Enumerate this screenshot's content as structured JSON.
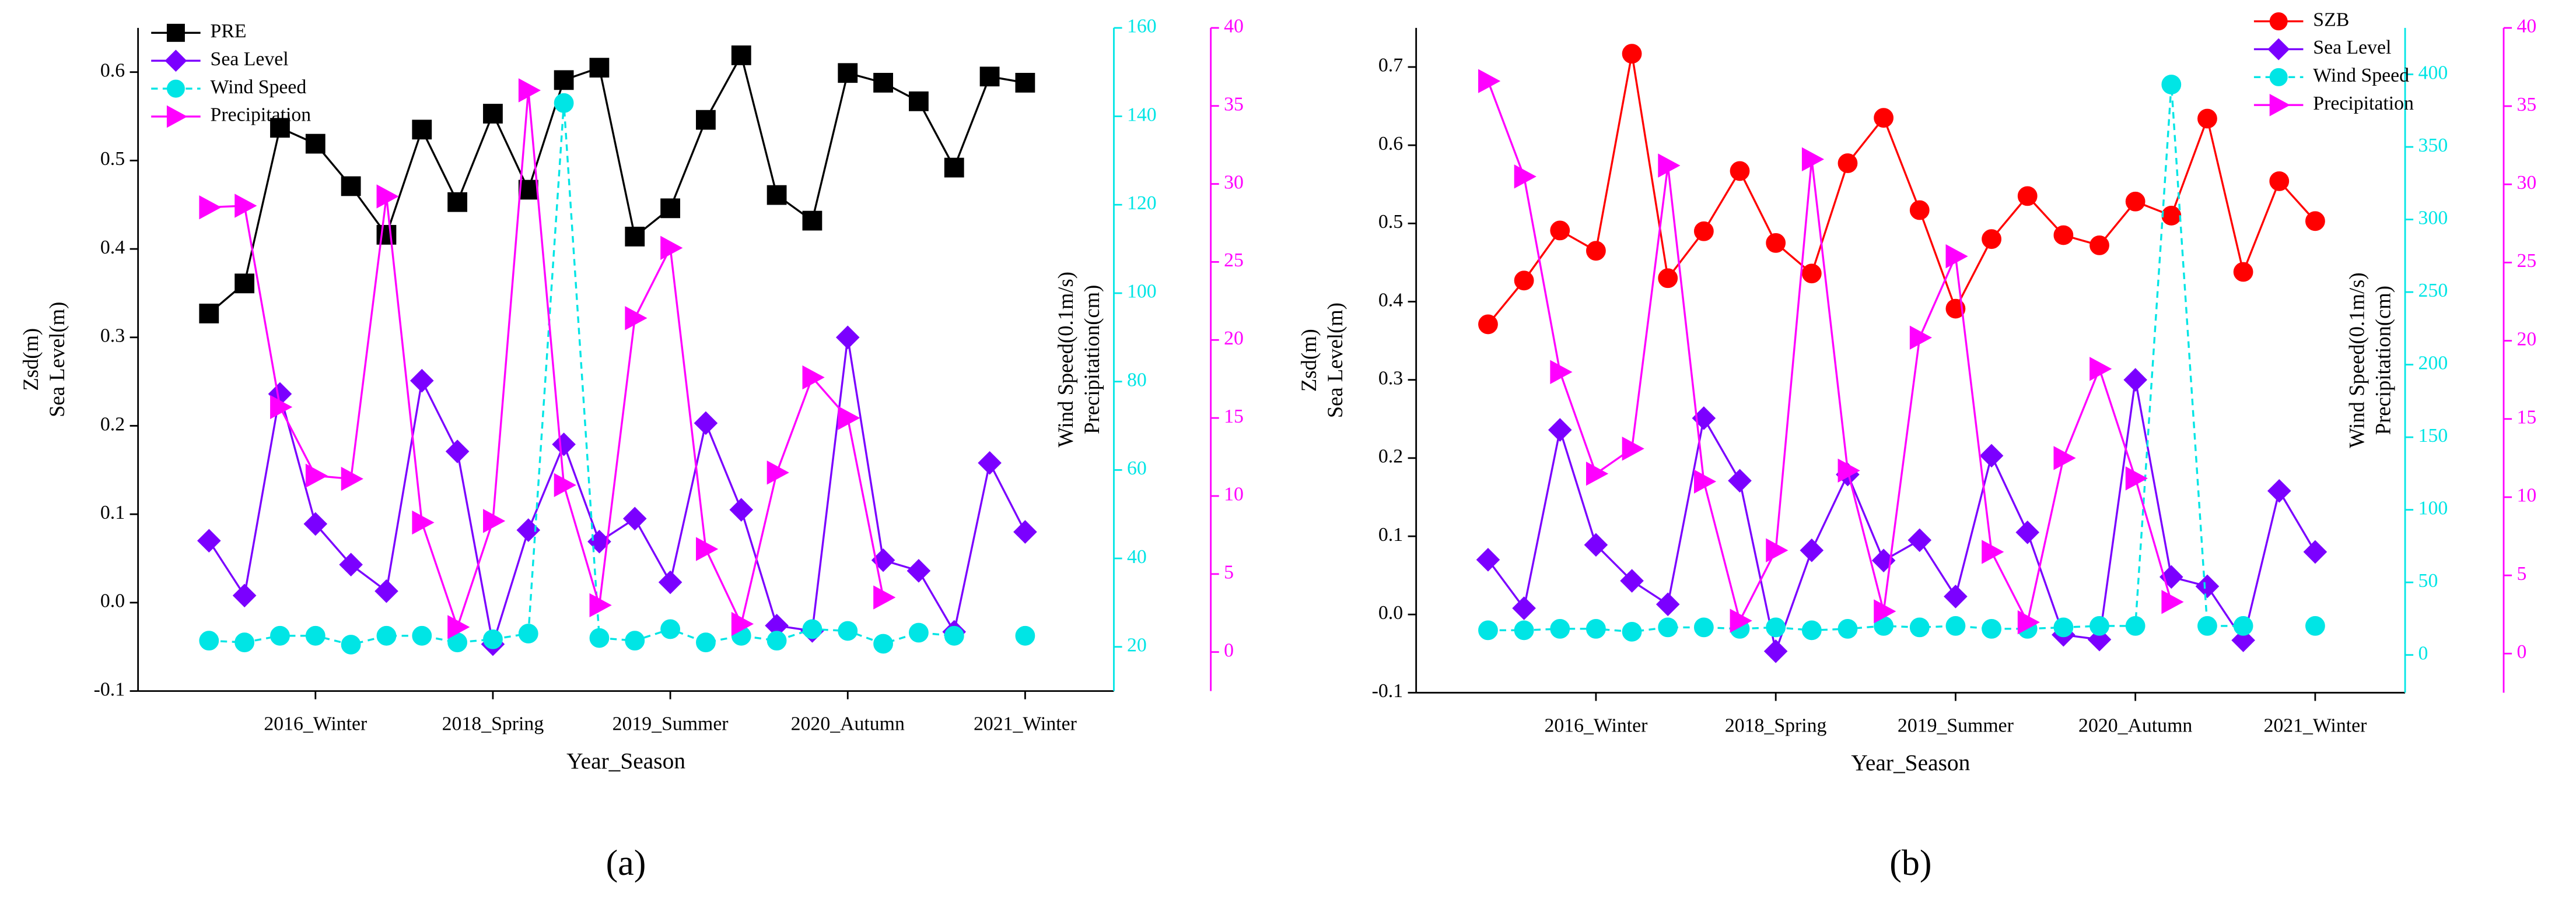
{
  "chart_data": [
    {
      "type": "line",
      "panel_label": "(a)",
      "xlabel": "Year_Season",
      "ylabel": [
        "Zsd(m)",
        "Sea Level(m)"
      ],
      "y2label": "Wind Speed(0.1m/s)",
      "y3label": "Precipitation(cm)",
      "legend": "upper left",
      "categories": [
        null,
        null,
        null,
        "2016_Winter",
        null,
        null,
        null,
        null,
        "2018_Spring",
        null,
        null,
        null,
        null,
        "2019_Summer",
        null,
        null,
        null,
        null,
        "2020_Autumn",
        null,
        null,
        null,
        null,
        "2021_Winter"
      ],
      "ylim": [
        -0.1,
        0.65
      ],
      "yticks": [
        -0.1,
        {
          "value": 0,
          "label": "0.0"
        },
        0.1,
        0.2,
        0.3,
        0.4,
        0.5,
        0.6
      ],
      "y2lim": [
        10,
        160
      ],
      "y2ticks": [
        20,
        40,
        60,
        80,
        100,
        120,
        140,
        160
      ],
      "y3lim": [
        -2.5,
        40
      ],
      "y3ticks": [
        0,
        5,
        10,
        15,
        20,
        25,
        30,
        35,
        40
      ],
      "series": [
        {
          "name": "PRE",
          "color": "#000000",
          "marker": "square",
          "axis": "y",
          "values": [
            0.327,
            0.361,
            0.537,
            0.519,
            0.471,
            0.416,
            0.535,
            0.453,
            0.553,
            0.467,
            0.591,
            0.605,
            0.414,
            0.446,
            0.546,
            0.619,
            0.461,
            0.432,
            0.599,
            0.588,
            0.567,
            0.492,
            0.595,
            0.588
          ]
        },
        {
          "name": "Sea Level",
          "color": "#7b00ff",
          "marker": "diamond",
          "axis": "y",
          "values": [
            0.07,
            0.008,
            0.236,
            0.089,
            0.043,
            0.013,
            0.251,
            0.171,
            -0.047,
            0.082,
            0.179,
            0.069,
            0.095,
            0.023,
            0.203,
            0.105,
            -0.026,
            -0.032,
            0.3,
            0.048,
            0.036,
            -0.033,
            0.158,
            0.08
          ]
        },
        {
          "name": "Wind Speed",
          "color": "#00e5e5",
          "marker": "circle",
          "axis": "y2",
          "dashed": true,
          "values": [
            21.4,
            21,
            22.5,
            22.5,
            20.5,
            22.5,
            22.5,
            21,
            21.7,
            23,
            143,
            22,
            21.4,
            24,
            21,
            22.5,
            21.4,
            24,
            23.6,
            20.7,
            23.2,
            22.5,
            null,
            22.5
          ]
        },
        {
          "name": "Precipitation",
          "color": "#ff00ff",
          "marker": "triangle",
          "axis": "y3",
          "values": [
            28.5,
            28.6,
            15.7,
            11.3,
            11.1,
            29.2,
            8.3,
            1.6,
            8.4,
            36,
            10.7,
            3,
            21.4,
            25.9,
            6.6,
            1.8,
            11.5,
            17.6,
            15,
            3.5,
            null,
            null,
            null,
            null
          ]
        }
      ]
    },
    {
      "type": "line",
      "panel_label": "(b)",
      "xlabel": "Year_Season",
      "ylabel": [
        "Zsd(m)",
        "Sea Level(m)"
      ],
      "y2label": "Wind Speed(0.1m/s)",
      "y3label": "Precipitation(cm)",
      "legend": "upper right",
      "categories": [
        null,
        null,
        null,
        "2016_Winter",
        null,
        null,
        null,
        null,
        "2018_Spring",
        null,
        null,
        null,
        null,
        "2019_Summer",
        null,
        null,
        null,
        null,
        "2020_Autumn",
        null,
        null,
        null,
        null,
        "2021_Winter"
      ],
      "ylim": [
        -0.1,
        0.75
      ],
      "yticks": [
        -0.1,
        {
          "value": 0,
          "label": "0.0"
        },
        0.1,
        0.2,
        0.3,
        0.4,
        0.5,
        0.6,
        0.7
      ],
      "y2lim": [
        -26,
        432
      ],
      "y2ticks": [
        0,
        50,
        100,
        150,
        200,
        250,
        300,
        350,
        400
      ],
      "y3lim": [
        -2.5,
        40
      ],
      "y3ticks": [
        0,
        5,
        10,
        15,
        20,
        25,
        30,
        35,
        40
      ],
      "series": [
        {
          "name": "SZB",
          "color": "#ff0000",
          "marker": "circle",
          "axis": "y",
          "values": [
            0.371,
            0.427,
            0.491,
            0.465,
            0.717,
            0.43,
            0.49,
            0.567,
            0.475,
            0.436,
            0.577,
            0.635,
            0.517,
            0.391,
            0.48,
            0.535,
            0.485,
            0.472,
            0.528,
            0.51,
            0.634,
            0.438,
            0.554,
            0.503
          ]
        },
        {
          "name": "Sea Level",
          "color": "#7b00ff",
          "marker": "diamond",
          "axis": "y",
          "values": [
            0.07,
            0.008,
            0.236,
            0.089,
            0.043,
            0.013,
            0.251,
            0.171,
            -0.047,
            0.082,
            0.179,
            0.069,
            0.095,
            0.023,
            0.203,
            0.105,
            -0.026,
            -0.032,
            0.3,
            0.048,
            0.036,
            -0.033,
            0.158,
            0.08
          ]
        },
        {
          "name": "Wind Speed",
          "color": "#00e5e5",
          "marker": "circle",
          "axis": "y2",
          "dashed": true,
          "values": [
            17,
            17,
            18,
            18,
            16,
            19,
            19,
            18,
            19,
            17,
            18,
            20,
            19,
            20,
            18,
            18,
            19,
            20,
            20,
            393,
            20,
            20,
            null,
            20
          ]
        },
        {
          "name": "Precipitation",
          "color": "#ff00ff",
          "marker": "triangle",
          "axis": "y3",
          "values": [
            36.6,
            30.5,
            18,
            11.5,
            13.1,
            31.2,
            11,
            2.1,
            6.6,
            31.6,
            11.7,
            2.7,
            20.2,
            25.4,
            6.5,
            2,
            12.5,
            18.2,
            11.2,
            3.3,
            null,
            null,
            null,
            null
          ]
        }
      ]
    }
  ]
}
